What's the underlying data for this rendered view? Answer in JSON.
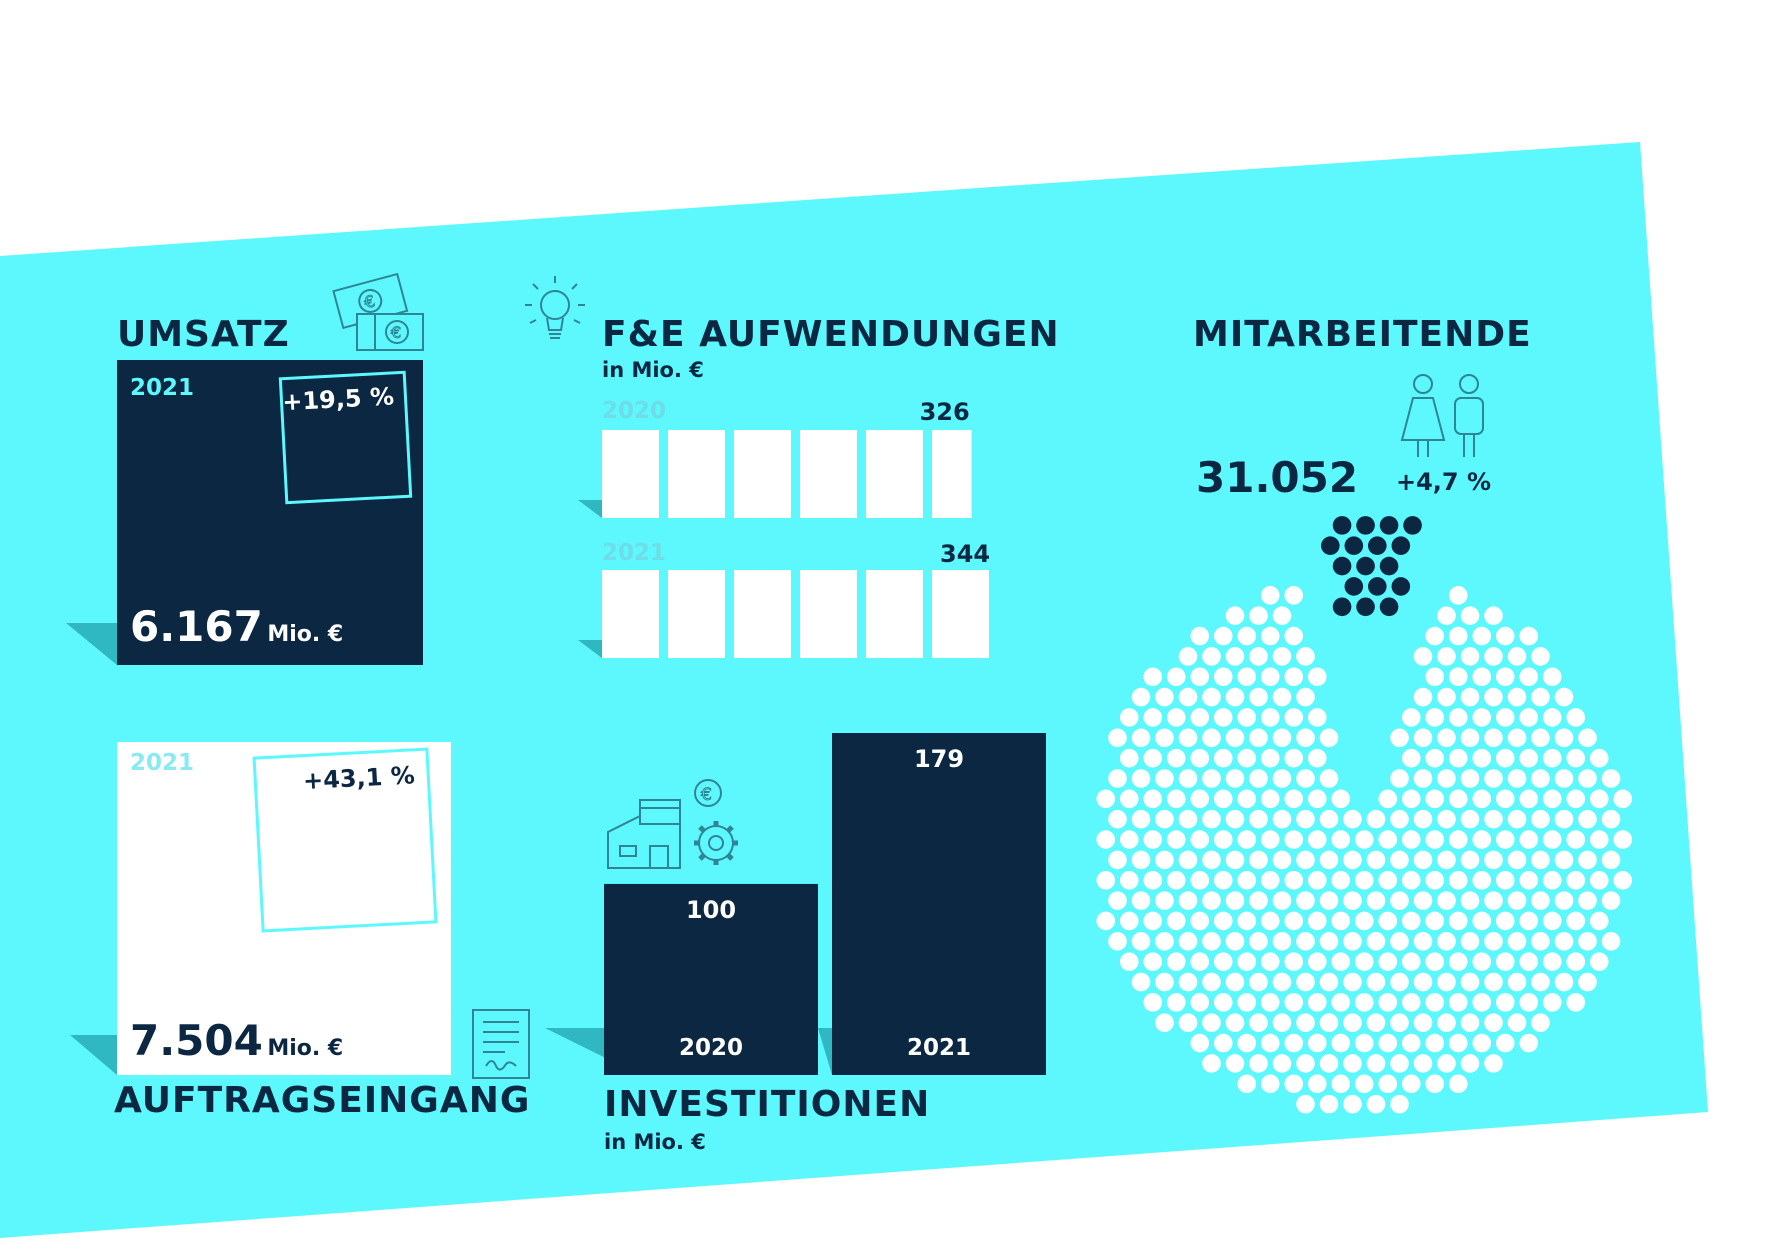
{
  "colors": {
    "background": "#5cf8fd",
    "navy": "#0b2741",
    "white": "#ffffff",
    "shadow": "#2fb8c2",
    "pale": "#8be9f2"
  },
  "icons": [
    "euro-bills-icon",
    "lightbulb-icon",
    "people-icon",
    "factory-icon",
    "euro-coin-icon",
    "gear-icon",
    "document-icon"
  ],
  "umsatz": {
    "title": "UMSATZ",
    "year": "2021",
    "change": "+19,5 %",
    "value": "6.167",
    "unit": "Mio. €"
  },
  "auftragseingang": {
    "title": "AUFTRAGSEINGANG",
    "year": "2021",
    "change": "+43,1 %",
    "value": "7.504",
    "unit": "Mio. €"
  },
  "fue": {
    "title": "F&E AUFWENDUNGEN",
    "subtitle": "in Mio. €"
  },
  "investitionen": {
    "title": "INVESTITIONEN",
    "subtitle": "in Mio.  €"
  },
  "mitarbeitende": {
    "title": "MITARBEITENDE",
    "value": "31.052",
    "change": "+4,7 %"
  },
  "chart_data": [
    {
      "type": "bar",
      "title": "F&E AUFWENDUNGEN",
      "subtitle": "in Mio. €",
      "categories": [
        "2020",
        "2021"
      ],
      "values": [
        326,
        344
      ],
      "value_labels": [
        "326",
        "344"
      ],
      "orientation": "horizontal"
    },
    {
      "type": "bar",
      "title": "INVESTITIONEN",
      "subtitle": "in Mio.  €",
      "categories": [
        "2020",
        "2021"
      ],
      "values": [
        100,
        179
      ],
      "value_labels": [
        "100",
        "179"
      ]
    },
    {
      "type": "pie",
      "title": "MITARBEITENDE",
      "value": 31052,
      "value_label": "31.052",
      "change": "+4,7 %",
      "slices": [
        {
          "label": "",
          "value": 95.3
        },
        {
          "label": "+4,7 %",
          "value": 4.7
        }
      ]
    }
  ]
}
